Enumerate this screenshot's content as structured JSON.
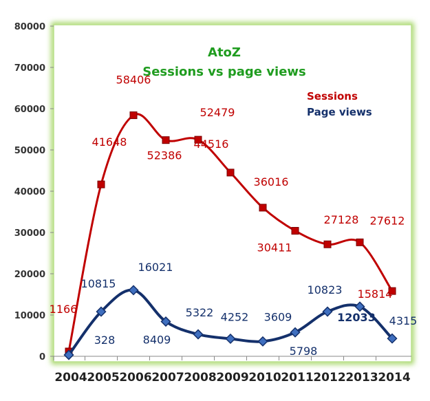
{
  "chart_data": {
    "type": "line",
    "title": "AtoZ",
    "subtitle": "Sessions  vs page views",
    "categories": [
      "2004",
      "2005",
      "2006",
      "2007",
      "2008",
      "2009",
      "2010",
      "2011",
      "2012",
      "2013",
      "2014"
    ],
    "ylim": [
      0,
      80000
    ],
    "yticks": [
      "0",
      "10000",
      "20000",
      "30000",
      "40000",
      "50000",
      "60000",
      "70000",
      "80000"
    ],
    "grid": false,
    "legend_position": "top-right",
    "series": [
      {
        "name": "Sessions",
        "color": "#c00000",
        "marker": "square",
        "values": [
          1166,
          41648,
          58406,
          52386,
          52479,
          44516,
          36016,
          30411,
          27128,
          27612,
          15814
        ]
      },
      {
        "name": "Page views",
        "color": "#14306b",
        "marker": "diamond",
        "values": [
          328,
          10815,
          16021,
          8409,
          5322,
          4252,
          3609,
          5798,
          10823,
          12033,
          4315
        ]
      }
    ]
  }
}
